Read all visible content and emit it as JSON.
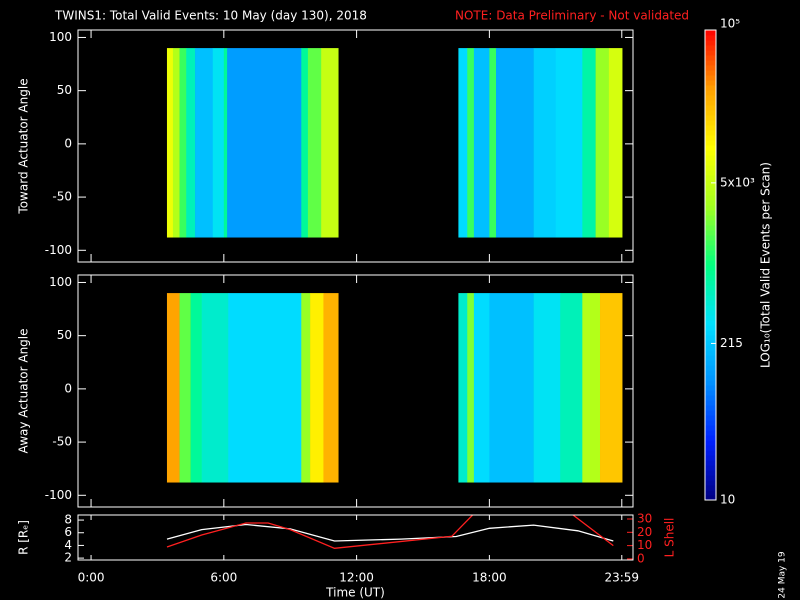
{
  "title": "TWINS1: Total Valid Events: 10 May (day 130), 2018",
  "note": "NOTE: Data Preliminary - Not validated",
  "stamp": "24 May 19",
  "colorbar": {
    "label": "LOG₁₀(Total Valid Events per Scan)",
    "range": [
      10,
      100000
    ],
    "log": true,
    "ticks": [
      10,
      215,
      {
        "value": 5000,
        "label": "5x10³"
      },
      {
        "value": 100000,
        "label": "10⁵"
      }
    ],
    "colors": [
      "#000080",
      "#0020ff",
      "#0090ff",
      "#00e0ff",
      "#00ff80",
      "#a0ff20",
      "#ffff00",
      "#ffa000",
      "#ff0000"
    ]
  },
  "chart_data": [
    {
      "type": "heatmap",
      "ylabel": "Toward Actuator Angle",
      "xlim": [
        -0.59,
        24.49
      ],
      "ylim": [
        -111,
        107
      ],
      "yticks": [
        -100,
        -50,
        0,
        50,
        100
      ],
      "y_extent": [
        -88,
        90
      ],
      "blocks": [
        {
          "bins": [
            3.43,
            3.7,
            4.0,
            4.3,
            4.7,
            5.5,
            6.0,
            6.15,
            9.5,
            9.8,
            10.4,
            11.17
          ],
          "values": [
            8000,
            4000,
            1500,
            600,
            200,
            350,
            800,
            120,
            800,
            2000,
            5000
          ]
        },
        {
          "bins": [
            16.6,
            17.0,
            17.3,
            18.0,
            18.3,
            20.0,
            21.0,
            22.2,
            22.8,
            23.4,
            24.0
          ],
          "values": [
            300,
            1500,
            200,
            1500,
            150,
            250,
            300,
            700,
            3000,
            6000
          ]
        }
      ]
    },
    {
      "type": "heatmap",
      "ylabel": "Away Actuator Angle",
      "xlim": [
        -0.59,
        24.49
      ],
      "ylim": [
        -111,
        107
      ],
      "yticks": [
        -100,
        -50,
        0,
        50,
        100
      ],
      "y_extent": [
        -88,
        90
      ],
      "blocks": [
        {
          "bins": [
            3.43,
            4.0,
            4.5,
            5.0,
            6.2,
            9.5,
            9.9,
            10.5,
            11.17
          ],
          "values": [
            30000,
            2000,
            800,
            500,
            300,
            3000,
            12000,
            25000
          ]
        },
        {
          "bins": [
            16.6,
            17.0,
            17.3,
            18.0,
            20.0,
            21.2,
            22.2,
            23.0,
            24.0
          ],
          "values": [
            500,
            2500,
            300,
            200,
            350,
            600,
            4000,
            20000
          ]
        }
      ]
    },
    {
      "type": "line",
      "xlabel": "Time (UT)",
      "xlim": [
        -0.59,
        24.49
      ],
      "xticks": [
        {
          "value": 0,
          "label": "0:00"
        },
        {
          "value": 6,
          "label": "6:00"
        },
        {
          "value": 12,
          "label": "12:00"
        },
        {
          "value": 18,
          "label": "18:00"
        },
        {
          "value": 23.983,
          "label": "23:59"
        }
      ],
      "ylabel": "R [Rₑ]",
      "ylim": [
        1.7,
        8.8
      ],
      "yticks": [
        2,
        4,
        6,
        8
      ],
      "y2label": "L Shell",
      "y2lim": [
        -0.8,
        33
      ],
      "y2ticks": [
        0,
        10,
        20,
        30
      ],
      "series": [
        {
          "name": "R",
          "color": "#ffffff",
          "x": [
            3.43,
            5,
            7,
            9,
            11,
            14,
            16.5,
            18,
            20,
            22,
            23.6
          ],
          "values": [
            5.0,
            6.5,
            7.3,
            6.6,
            4.7,
            5.0,
            5.4,
            6.7,
            7.2,
            6.3,
            4.7
          ]
        },
        {
          "name": "L Shell",
          "color": "#ff2020",
          "axis": "y2",
          "x": [
            3.43,
            5,
            7,
            8,
            9,
            11,
            16.3,
            17.3,
            19,
            21.7,
            23.6
          ],
          "values": [
            9,
            18,
            27,
            27,
            22,
            8,
            17,
            34,
            null,
            34,
            10
          ]
        }
      ]
    }
  ]
}
